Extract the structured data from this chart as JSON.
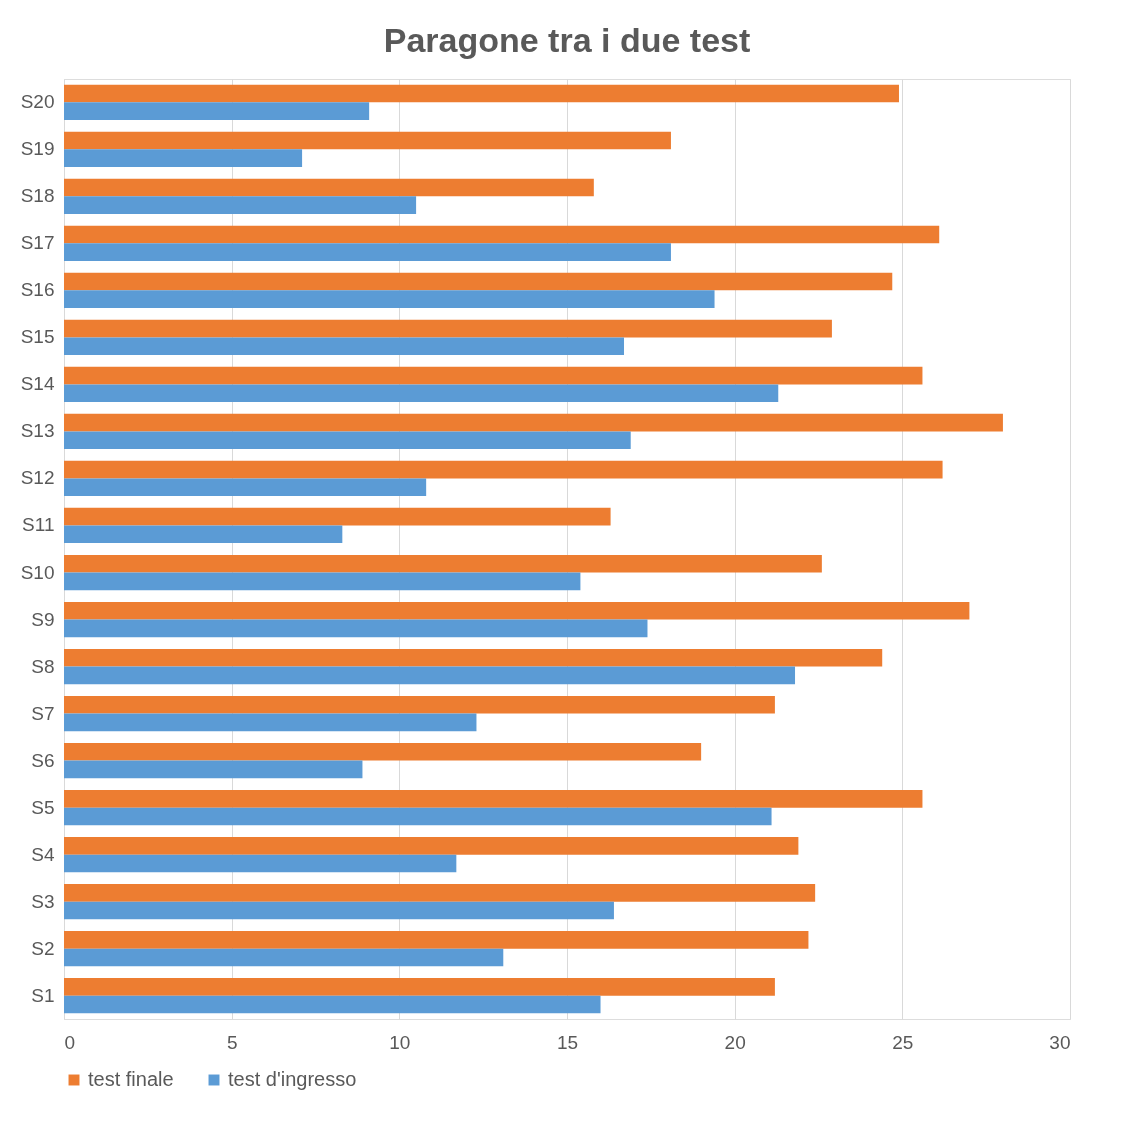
{
  "chart_data": {
    "type": "bar",
    "orientation": "horizontal",
    "title": "Paragone tra i due test",
    "categories": [
      "S20",
      "S19",
      "S18",
      "S17",
      "S16",
      "S15",
      "S14",
      "S13",
      "S12",
      "S11",
      "S10",
      "S9",
      "S8",
      "S7",
      "S6",
      "S5",
      "S4",
      "S3",
      "S2",
      "S1"
    ],
    "series": [
      {
        "name": "test finale",
        "color": "#ed7d31",
        "values": [
          24.9,
          18.1,
          15.8,
          26.1,
          24.7,
          22.9,
          25.6,
          28.0,
          26.2,
          16.3,
          22.6,
          27.0,
          24.4,
          21.2,
          19.0,
          25.6,
          21.9,
          22.4,
          22.2,
          21.2
        ]
      },
      {
        "name": "test d'ingresso",
        "color": "#5b9bd5",
        "values": [
          9.1,
          7.1,
          10.5,
          18.1,
          19.4,
          16.7,
          21.3,
          16.9,
          10.8,
          8.3,
          15.4,
          17.4,
          21.8,
          12.3,
          8.9,
          21.1,
          11.7,
          16.4,
          13.1,
          16.0
        ]
      }
    ],
    "xlim": [
      0,
      30
    ],
    "xticks": [
      0,
      5,
      10,
      15,
      20,
      25,
      30
    ],
    "grid": "x",
    "legend": "bottom"
  }
}
